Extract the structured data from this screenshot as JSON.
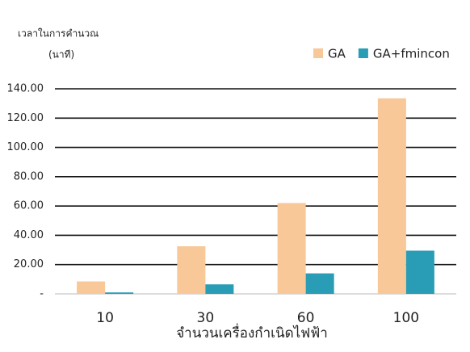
{
  "chart_data": {
    "type": "bar",
    "ylabel": "เวลาในการคำนวณ",
    "ylabel_unit": "(นาที)",
    "xlabel": "จำนวนเครื่องกำเนิดไฟฟ้า",
    "categories": [
      "10",
      "30",
      "60",
      "100"
    ],
    "series": [
      {
        "name": "GA",
        "color": "#f8c898",
        "values": [
          8.5,
          32.5,
          62,
          133.5
        ]
      },
      {
        "name": "GA+fmincon",
        "color": "#2a9db6",
        "values": [
          1,
          6.5,
          14,
          29.5
        ]
      }
    ],
    "ylim": [
      0,
      140
    ],
    "yticks": [
      {
        "value": 0,
        "label": "-"
      },
      {
        "value": 20,
        "label": "20.00"
      },
      {
        "value": 40,
        "label": "40.00"
      },
      {
        "value": 60,
        "label": "60.00"
      },
      {
        "value": 80,
        "label": "80.00"
      },
      {
        "value": 100,
        "label": "100.00"
      },
      {
        "value": 120,
        "label": "120.00"
      },
      {
        "value": 140,
        "label": "140.00"
      }
    ],
    "grid": true,
    "legend": "top-right"
  }
}
